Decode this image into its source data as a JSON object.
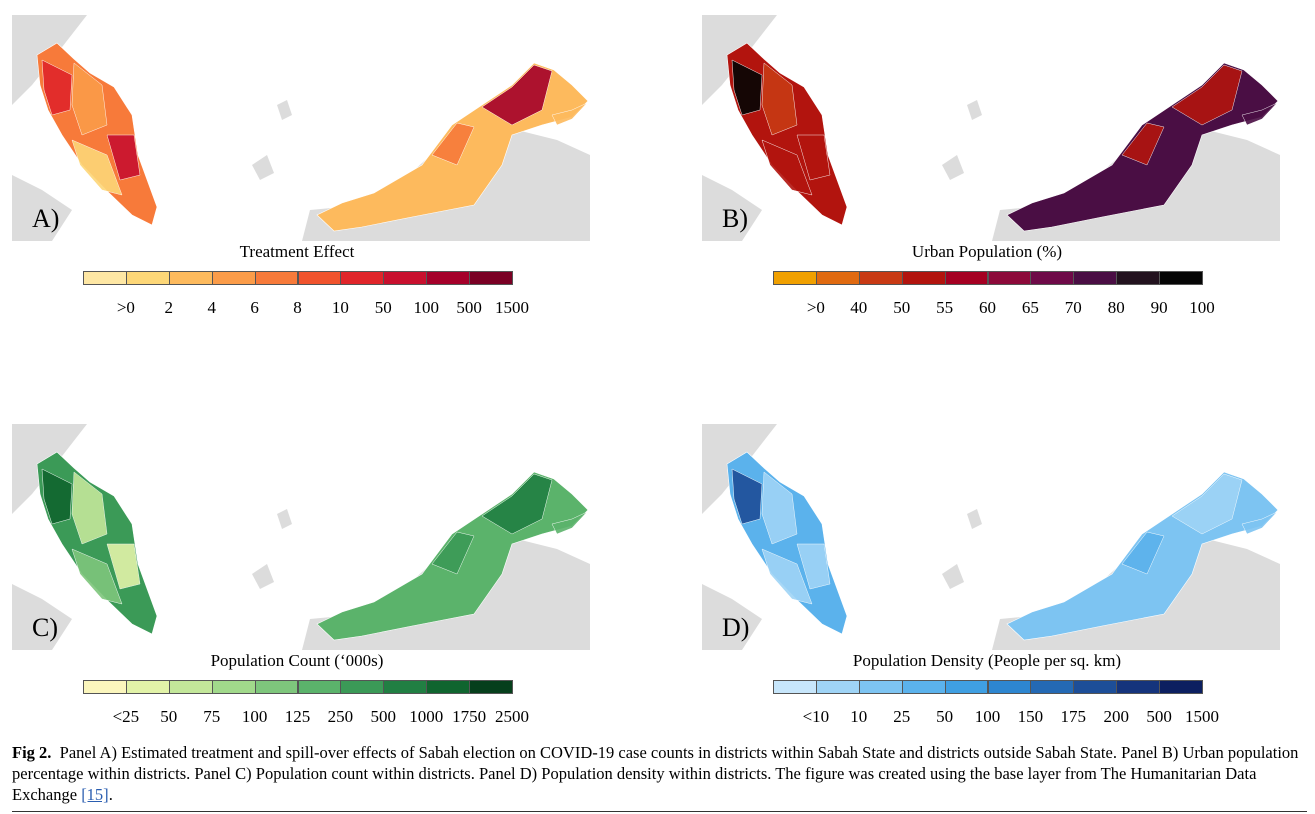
{
  "panels": [
    {
      "label": "A)",
      "legend": {
        "title": "Treatment Effect",
        "colors": [
          "#fee7a4",
          "#fdd778",
          "#fdba5d",
          "#fb9c49",
          "#f77a3a",
          "#f0532d",
          "#e0252a",
          "#c8102e",
          "#a5002a",
          "#7a0024"
        ],
        "labels": [
          ">0",
          "2",
          "4",
          "6",
          "8",
          "10",
          "50",
          "100",
          "500",
          "1500"
        ]
      }
    },
    {
      "label": "B)",
      "legend": {
        "title": "Urban Population (%)",
        "colors": [
          "#f0a000",
          "#e06a10",
          "#c83a14",
          "#b2140e",
          "#a50022",
          "#8c0a3a",
          "#6e0a48",
          "#4a0e44",
          "#22121e",
          "#050505"
        ],
        "labels": [
          ">0",
          "40",
          "50",
          "55",
          "60",
          "65",
          "70",
          "80",
          "90",
          "100"
        ]
      }
    },
    {
      "label": "C)",
      "legend": {
        "title": "Population Count (‘000s)",
        "colors": [
          "#fbf6bd",
          "#e2f3a8",
          "#c3e79a",
          "#a1d98b",
          "#7ec67c",
          "#5bb36b",
          "#3b9a57",
          "#217f43",
          "#10652f",
          "#063f1c"
        ],
        "labels": [
          "<25",
          "50",
          "75",
          "100",
          "125",
          "250",
          "500",
          "1000",
          "1750",
          "2500"
        ]
      }
    },
    {
      "label": "D)",
      "legend": {
        "title": "Population Density (People per sq. km)",
        "colors": [
          "#c7e6fb",
          "#9fd4f6",
          "#7dc4f2",
          "#5bb2ec",
          "#3f9fe2",
          "#2d86d0",
          "#2469b4",
          "#1d4e98",
          "#15347c",
          "#0c1f60"
        ],
        "labels": [
          "<10",
          "10",
          "25",
          "50",
          "100",
          "150",
          "175",
          "200",
          "500",
          "1500"
        ]
      }
    }
  ],
  "caption": {
    "label": "Fig 2.",
    "text": "Panel A) Estimated treatment and spill-over effects of Sabah election on COVID-19 case counts in districts within Sabah State and districts outside Sabah State. Panel B) Urban population percentage within districts. Panel C) Population count within districts. Panel D) Population density within districts. The figure was created using the base layer from The Humanitarian Data Exchange ",
    "ref": "[15]",
    "end": "."
  }
}
